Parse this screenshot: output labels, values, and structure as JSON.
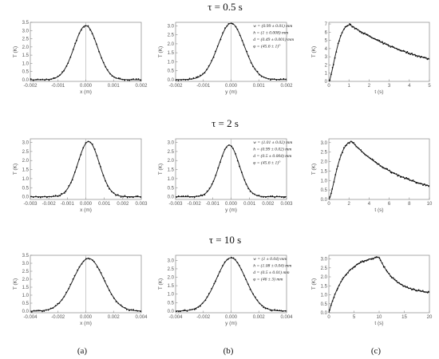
{
  "row_titles": [
    "τ = 0.5 s",
    "τ = 2 s",
    "τ = 10 s"
  ],
  "column_labels": [
    "(a)",
    "(b)",
    "(c)"
  ],
  "chart_data": [
    {
      "id": "r0c0",
      "type": "scatter",
      "row": 0,
      "col": 0,
      "xlabel": "x (m)",
      "ylabel": "T (K)",
      "xlim": [
        -0.002,
        0.002
      ],
      "ylim": [
        -0.1,
        3.5
      ],
      "xticks": [
        -0.002,
        -0.001,
        0.0,
        0.001,
        0.002
      ],
      "xtick_labels": [
        "-0.002",
        "-0.001",
        "0.000",
        "0.001",
        "0.002"
      ],
      "yticks": [
        0,
        0.5,
        1.0,
        1.5,
        2.0,
        2.5,
        3.0,
        3.5
      ],
      "ytick_labels": [
        "0.0",
        "0.5",
        "1.0",
        "1.5",
        "2.0",
        "2.5",
        "3.0",
        "3.5"
      ],
      "vline": 0.0,
      "model": {
        "kind": "gaussian",
        "amplitude": 3.3,
        "center": 0.0,
        "width": 0.00042
      },
      "annotations": []
    },
    {
      "id": "r0c1",
      "type": "scatter",
      "row": 0,
      "col": 1,
      "xlabel": "y (m)",
      "ylabel": "T (K)",
      "xlim": [
        -0.002,
        0.002
      ],
      "ylim": [
        -0.1,
        3.2
      ],
      "xticks": [
        -0.002,
        -0.001,
        0.0,
        0.001,
        0.002
      ],
      "xtick_labels": [
        "-0.002",
        "-0.001",
        "0.000",
        "0.001",
        "0.002"
      ],
      "yticks": [
        0,
        0.5,
        1.0,
        1.5,
        2.0,
        2.5,
        3.0
      ],
      "ytick_labels": [
        "0.0",
        "0.5",
        "1.0",
        "1.5",
        "2.0",
        "2.5",
        "3.0"
      ],
      "vline": 0.0,
      "model": {
        "kind": "gaussian",
        "amplitude": 3.15,
        "center": 0.0,
        "width": 0.00047
      },
      "annotations": [
        "w = (0.99 ± 0.01) mm",
        "h = (1 ± 0.008) mm",
        "d = (0.49 ± 0.001) mm",
        "φ = (45.6 ± 1)°"
      ]
    },
    {
      "id": "r0c2",
      "type": "scatter",
      "row": 0,
      "col": 2,
      "xlabel": "t (s)",
      "ylabel": "T (K)",
      "xlim": [
        0,
        5
      ],
      "ylim": [
        0,
        7.2
      ],
      "xticks": [
        0,
        1,
        2,
        3,
        4,
        5
      ],
      "xtick_labels": [
        "0",
        "1",
        "2",
        "3",
        "4",
        "5"
      ],
      "yticks": [
        0,
        1,
        2,
        3,
        4,
        5,
        6,
        7
      ],
      "ytick_labels": [
        "0",
        "1",
        "2",
        "3",
        "4",
        "5",
        "6",
        "7"
      ],
      "vline": null,
      "model": {
        "kind": "transient",
        "peak": 6.9,
        "t_peak": 1.05,
        "end_value": 2.3,
        "t_end": 5
      },
      "annotations": []
    },
    {
      "id": "r1c0",
      "type": "scatter",
      "row": 1,
      "col": 0,
      "xlabel": "x (m)",
      "ylabel": "T (K)",
      "xlim": [
        -0.003,
        0.003
      ],
      "ylim": [
        -0.15,
        3.2
      ],
      "xticks": [
        -0.003,
        -0.002,
        -0.001,
        0.0,
        0.001,
        0.002,
        0.003
      ],
      "xtick_labels": [
        "-0.003",
        "-0.002",
        "-0.001",
        "0.000",
        "0.001",
        "0.002",
        "0.003"
      ],
      "yticks": [
        0,
        0.5,
        1.0,
        1.5,
        2.0,
        2.5,
        3.0
      ],
      "ytick_labels": [
        "0.0",
        "0.5",
        "1.0",
        "1.5",
        "2.0",
        "2.5",
        "3.0"
      ],
      "vline": 0.0,
      "model": {
        "kind": "gaussian",
        "amplitude": 3.05,
        "center": 0.00015,
        "width": 0.00058
      },
      "annotations": []
    },
    {
      "id": "r1c1",
      "type": "scatter",
      "row": 1,
      "col": 1,
      "xlabel": "y (m)",
      "ylabel": "T (K)",
      "xlim": [
        -0.003,
        0.003
      ],
      "ylim": [
        -0.15,
        3.2
      ],
      "xticks": [
        -0.003,
        -0.002,
        -0.001,
        0.0,
        0.001,
        0.002,
        0.003
      ],
      "xtick_labels": [
        "-0.003",
        "-0.002",
        "-0.001",
        "0.000",
        "0.001",
        "0.002",
        "0.003"
      ],
      "yticks": [
        0,
        0.5,
        1.0,
        1.5,
        2.0,
        2.5,
        3.0
      ],
      "ytick_labels": [
        "0.0",
        "0.5",
        "1.0",
        "1.5",
        "2.0",
        "2.5",
        "3.0"
      ],
      "vline": 0.0,
      "model": {
        "kind": "gaussian",
        "amplitude": 2.85,
        "center": -0.0001,
        "width": 0.00055
      },
      "annotations": [
        "w = (1.01 ± 0.02) mm",
        "h = (0.99 ± 0.02) mm",
        "d = (0.5 ± 0.004) mm",
        "φ = (45.6 ± 1)°"
      ]
    },
    {
      "id": "r1c2",
      "type": "scatter",
      "row": 1,
      "col": 2,
      "xlabel": "t (s)",
      "ylabel": "T (K)",
      "xlim": [
        0,
        10
      ],
      "ylim": [
        0,
        3.2
      ],
      "xticks": [
        0,
        2,
        4,
        6,
        8,
        10
      ],
      "xtick_labels": [
        "0",
        "2",
        "4",
        "6",
        "8",
        "10"
      ],
      "yticks": [
        0,
        0.5,
        1.0,
        1.5,
        2.0,
        2.5,
        3.0
      ],
      "ytick_labels": [
        "0.0",
        "0.5",
        "1.0",
        "1.5",
        "2.0",
        "2.5",
        "3.0"
      ],
      "vline": null,
      "model": {
        "kind": "transient",
        "peak": 3.05,
        "t_peak": 2.3,
        "end_value": 0.55,
        "t_end": 10
      },
      "annotations": []
    },
    {
      "id": "r2c0",
      "type": "scatter",
      "row": 2,
      "col": 0,
      "xlabel": "x (m)",
      "ylabel": "T (K)",
      "xlim": [
        -0.004,
        0.004
      ],
      "ylim": [
        -0.1,
        3.5
      ],
      "xticks": [
        -0.004,
        -0.002,
        0.0,
        0.002,
        0.004
      ],
      "xtick_labels": [
        "-0.004",
        "-0.002",
        "0.000",
        "0.002",
        "0.004"
      ],
      "yticks": [
        0,
        0.5,
        1.0,
        1.5,
        2.0,
        2.5,
        3.0,
        3.5
      ],
      "ytick_labels": [
        "0.0",
        "0.5",
        "1.0",
        "1.5",
        "2.0",
        "2.5",
        "3.0",
        "3.5"
      ],
      "vline": 0.0,
      "model": {
        "kind": "gaussian",
        "amplitude": 3.3,
        "center": 0.0002,
        "width": 0.0011
      },
      "annotations": []
    },
    {
      "id": "r2c1",
      "type": "scatter",
      "row": 2,
      "col": 1,
      "xlabel": "y (m)",
      "ylabel": "T (K)",
      "xlim": [
        -0.004,
        0.004
      ],
      "ylim": [
        -0.1,
        3.3
      ],
      "xticks": [
        -0.004,
        -0.002,
        0.0,
        0.002,
        0.004
      ],
      "xtick_labels": [
        "-0.004",
        "-0.002",
        "0.000",
        "0.002",
        "0.004"
      ],
      "yticks": [
        0,
        0.5,
        1.0,
        1.5,
        2.0,
        2.5,
        3.0
      ],
      "ytick_labels": [
        "0.0",
        "0.5",
        "1.0",
        "1.5",
        "2.0",
        "2.5",
        "3.0"
      ],
      "vline": 0.0,
      "model": {
        "kind": "gaussian",
        "amplitude": 3.15,
        "center": 0.0,
        "width": 0.00105
      },
      "annotations": [
        "w = (1 ± 0.04) mm",
        "h = (1.08 ± 0.04) mm",
        "d = (0.5 ± 0.01) mm",
        "φ = (46 ± 3) mm"
      ]
    },
    {
      "id": "r2c2",
      "type": "scatter",
      "row": 2,
      "col": 2,
      "xlabel": "t (s)",
      "ylabel": "T (K)",
      "xlim": [
        0,
        20
      ],
      "ylim": [
        0,
        3.2
      ],
      "xticks": [
        0,
        5,
        10,
        15,
        20
      ],
      "xtick_labels": [
        "0",
        "5",
        "10",
        "15",
        "20"
      ],
      "yticks": [
        0,
        0.5,
        1.0,
        1.5,
        2.0,
        2.5,
        3.0
      ],
      "ytick_labels": [
        "0.0",
        "0.5",
        "1.0",
        "1.5",
        "2.0",
        "2.5",
        "3.0"
      ],
      "vline": null,
      "model": {
        "kind": "heat_cool",
        "t_switch": 10,
        "peak": 3.1,
        "end_value": 1.2,
        "t_end": 20
      },
      "annotations": []
    }
  ]
}
